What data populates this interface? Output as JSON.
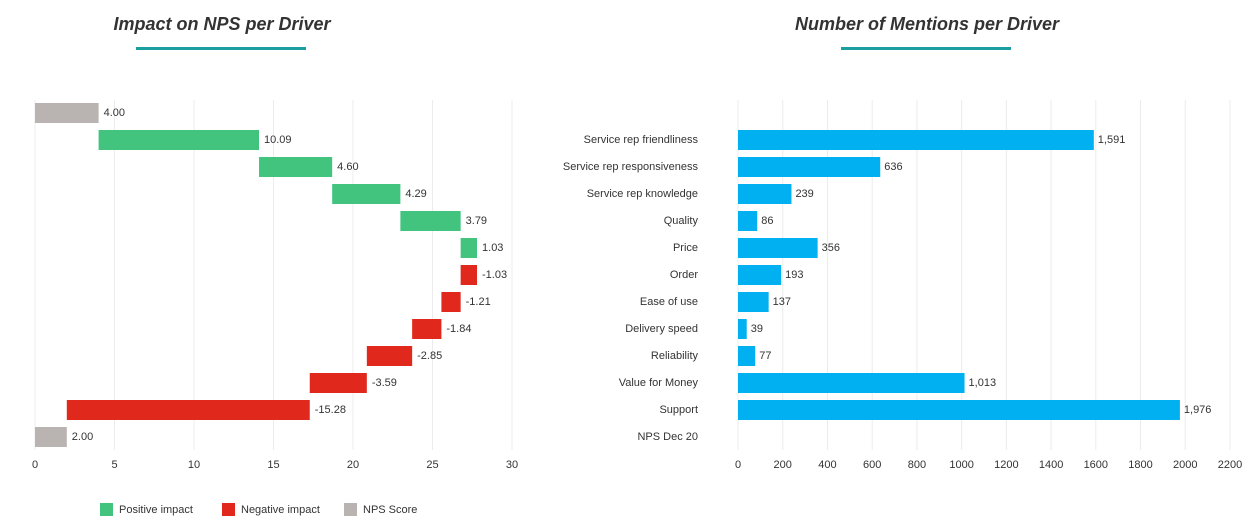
{
  "chart_data": [
    {
      "type": "waterfall",
      "title": "Impact on NPS per Driver",
      "values": [
        4.0,
        10.09,
        4.6,
        4.29,
        3.79,
        1.03,
        -1.03,
        -1.21,
        -1.84,
        -2.85,
        -3.59,
        -15.28,
        2.0
      ],
      "value_labels": [
        "4.00",
        "10.09",
        "4.60",
        "4.29",
        "3.79",
        "1.03",
        "-1.03",
        "-1.21",
        "-1.84",
        "-2.85",
        "-3.59",
        "-15.28",
        "2.00"
      ],
      "measures": [
        "absolute",
        "relative",
        "relative",
        "relative",
        "relative",
        "relative",
        "relative",
        "relative",
        "relative",
        "relative",
        "relative",
        "relative",
        "total"
      ],
      "legend": [
        {
          "name": "Positive impact",
          "color": "#43c47e"
        },
        {
          "name": "Negative impact",
          "color": "#e0291c"
        },
        {
          "name": "NPS Score",
          "color": "#b9b3b1"
        }
      ],
      "xlim": [
        0,
        30
      ],
      "xticks": [
        0,
        5,
        10,
        15,
        20,
        25,
        30
      ],
      "grid": true
    },
    {
      "type": "hbar",
      "title": "Number of Mentions per Driver",
      "categories": [
        null,
        "Service rep friendliness",
        "Service rep responsiveness",
        "Service rep knowledge",
        "Quality",
        "Price",
        "Order",
        "Ease of use",
        "Delivery speed",
        "Reliability",
        "Value for Money",
        "Support",
        "NPS Dec 20"
      ],
      "values": [
        null,
        1591,
        636,
        239,
        86,
        356,
        193,
        137,
        39,
        77,
        1013,
        1976,
        null
      ],
      "value_labels": [
        null,
        "1,591",
        "636",
        "239",
        "86",
        "356",
        "193",
        "137",
        "39",
        "77",
        "1,013",
        "1,976",
        null
      ],
      "color": "#00b0f0",
      "xlim": [
        0,
        2200
      ],
      "xticks": [
        0,
        200,
        400,
        600,
        800,
        1000,
        1200,
        1400,
        1600,
        1800,
        2000,
        2200
      ],
      "grid": true
    }
  ]
}
